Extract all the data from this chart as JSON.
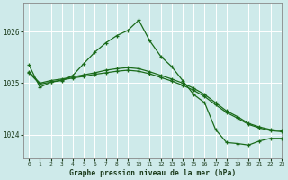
{
  "title": "Graphe pression niveau de la mer (hPa)",
  "bg_color": "#ceeaea",
  "grid_color": "#ffffff",
  "line_color": "#1a6b1a",
  "xlim": [
    -0.5,
    23
  ],
  "ylim": [
    1023.55,
    1026.55
  ],
  "yticks": [
    1024,
    1025,
    1026
  ],
  "xticks": [
    0,
    1,
    2,
    3,
    4,
    5,
    6,
    7,
    8,
    9,
    10,
    11,
    12,
    13,
    14,
    15,
    16,
    17,
    18,
    19,
    20,
    21,
    22,
    23
  ],
  "series": [
    {
      "x": [
        0,
        1,
        2,
        3,
        4,
        5,
        6,
        7,
        8,
        9,
        10,
        11,
        12,
        13,
        14,
        15,
        16,
        17,
        18,
        19,
        20,
        21,
        22,
        23
      ],
      "y": [
        1025.35,
        1024.92,
        1025.02,
        1025.05,
        1025.15,
        1025.38,
        1025.6,
        1025.78,
        1025.92,
        1026.02,
        1026.22,
        1025.82,
        1025.52,
        1025.32,
        1025.05,
        1024.78,
        1024.62,
        1024.1,
        1023.85,
        1023.83,
        1023.8,
        1023.88,
        1023.93,
        1023.93
      ]
    },
    {
      "x": [
        0,
        1,
        2,
        3,
        4,
        5,
        6,
        7,
        8,
        9,
        10,
        11,
        12,
        13,
        14,
        15,
        16,
        17,
        18,
        19,
        20,
        21,
        22,
        23
      ],
      "y": [
        1025.22,
        1025.0,
        1025.05,
        1025.08,
        1025.12,
        1025.16,
        1025.2,
        1025.25,
        1025.28,
        1025.3,
        1025.28,
        1025.22,
        1025.15,
        1025.08,
        1025.0,
        1024.9,
        1024.78,
        1024.62,
        1024.46,
        1024.35,
        1024.22,
        1024.15,
        1024.1,
        1024.08
      ]
    },
    {
      "x": [
        0,
        1,
        2,
        3,
        4,
        5,
        6,
        7,
        8,
        9,
        10,
        11,
        12,
        13,
        14,
        15,
        16,
        17,
        18,
        19,
        20,
        21,
        22,
        23
      ],
      "y": [
        1025.2,
        1024.98,
        1025.02,
        1025.06,
        1025.1,
        1025.13,
        1025.17,
        1025.2,
        1025.23,
        1025.25,
        1025.23,
        1025.18,
        1025.11,
        1025.04,
        1024.96,
        1024.86,
        1024.74,
        1024.58,
        1024.43,
        1024.32,
        1024.2,
        1024.13,
        1024.08,
        1024.06
      ]
    }
  ]
}
